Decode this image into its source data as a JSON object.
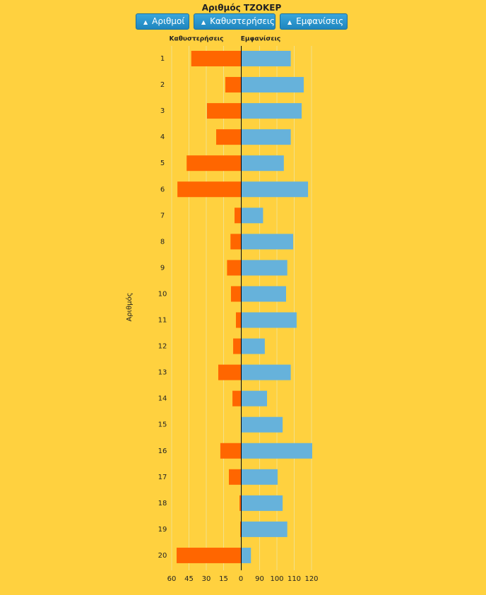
{
  "chart_data": {
    "type": "butterfly-bar",
    "title": "Αριθμός ΤΖΟΚΕΡ",
    "buttons": [
      "Αριθμοί",
      "Καθυστερήσεις",
      "Εμφανίσεις"
    ],
    "y_label": "Αριθμός",
    "categories": [
      "1",
      "2",
      "3",
      "4",
      "5",
      "6",
      "7",
      "8",
      "9",
      "10",
      "11",
      "12",
      "13",
      "14",
      "15",
      "16",
      "17",
      "18",
      "19",
      "20"
    ],
    "series": [
      {
        "name": "Καθυστερήσεις",
        "color": "#ff6600",
        "axis": "x",
        "values": [
          43,
          13.5,
          29.4,
          21.4,
          47,
          55,
          5.5,
          9,
          12,
          8.6,
          4.3,
          6.7,
          19.6,
          7.3,
          0,
          17.8,
          10.4,
          1.2,
          0.6,
          55.7
        ]
      },
      {
        "name": "Εμφανίσεις",
        "color": "#66b2db",
        "axis": "x2",
        "values": [
          108,
          115.5,
          114.3,
          108,
          104,
          118,
          92,
          109.4,
          106,
          105.3,
          111.4,
          93,
          108,
          94.3,
          103.3,
          120.4,
          100.4,
          103.3,
          106,
          85
        ]
      }
    ],
    "xlim": [
      0,
      60
    ],
    "xticks": [
      60,
      45,
      30,
      15,
      0
    ],
    "x2lim": [
      80,
      120
    ],
    "x2ticks": [
      90,
      100,
      110,
      120
    ],
    "grid": true
  }
}
